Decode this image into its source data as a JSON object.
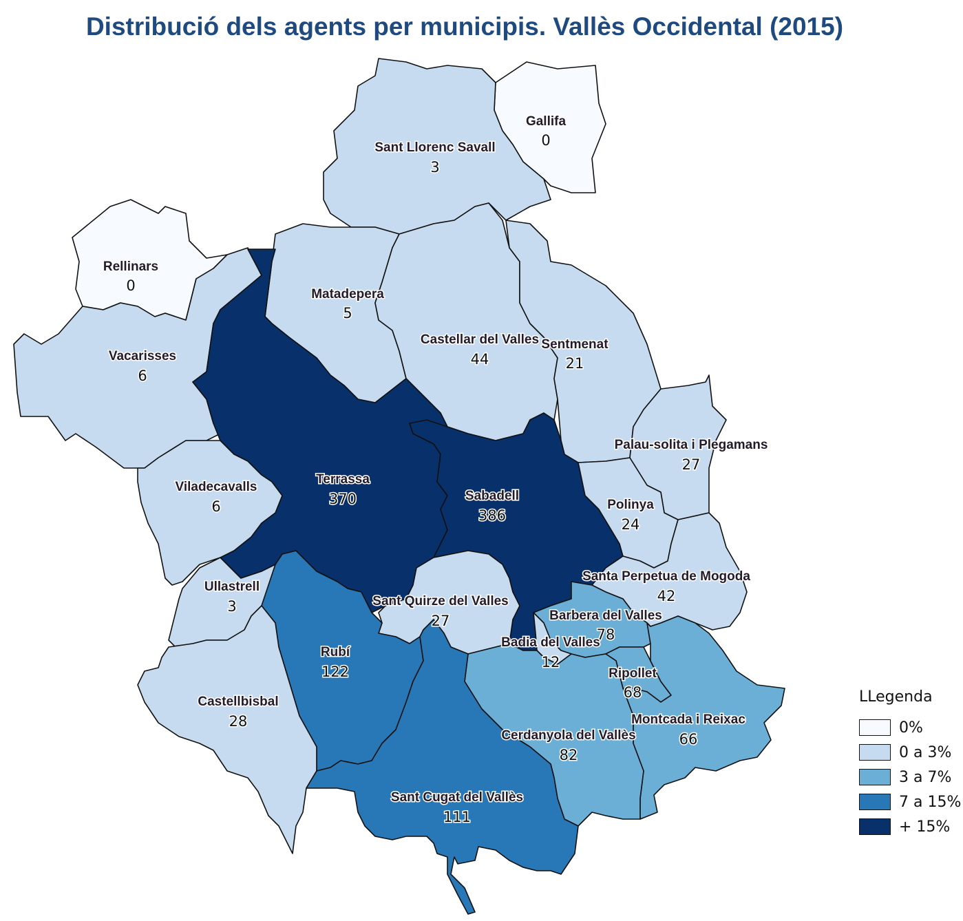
{
  "title": "Distribució dels agents per municipis. Vallès Occidental (2015)",
  "legend": {
    "title": "LLegenda",
    "items": [
      {
        "label": "0%",
        "color": "#f7fbff"
      },
      {
        "label": "0 a 3%",
        "color": "#c6dbef"
      },
      {
        "label": "3 a 7%",
        "color": "#6baed6"
      },
      {
        "label": "7 a 15%",
        "color": "#2878b8"
      },
      {
        "label": "+ 15%",
        "color": "#08306b"
      }
    ]
  },
  "municipalities": [
    {
      "name": "Gallifa",
      "value": "0",
      "class": 0
    },
    {
      "name": "Sant Llorenc Savall",
      "value": "3",
      "class": 1
    },
    {
      "name": "Rellinars",
      "value": "0",
      "class": 0
    },
    {
      "name": "Matadepera",
      "value": "5",
      "class": 1
    },
    {
      "name": "Vacarisses",
      "value": "6",
      "class": 1
    },
    {
      "name": "Castellar del Valles",
      "value": "44",
      "class": 1
    },
    {
      "name": "Sentmenat",
      "value": "21",
      "class": 1
    },
    {
      "name": "Palau-solita i Plegamans",
      "value": "27",
      "class": 1
    },
    {
      "name": "Terrassa",
      "value": "370",
      "class": 4
    },
    {
      "name": "Sabadell",
      "value": "386",
      "class": 4
    },
    {
      "name": "Viladecavalls",
      "value": "6",
      "class": 1
    },
    {
      "name": "Polinya",
      "value": "24",
      "class": 1
    },
    {
      "name": "Ullastrell",
      "value": "3",
      "class": 1
    },
    {
      "name": "Santa Perpetua de Mogoda",
      "value": "42",
      "class": 1
    },
    {
      "name": "Sant Quirze del Valles",
      "value": "27",
      "class": 1
    },
    {
      "name": "Barbera del Valles",
      "value": "78",
      "class": 2
    },
    {
      "name": "Badia del Valles",
      "value": "12",
      "class": 1
    },
    {
      "name": "Rubí",
      "value": "122",
      "class": 3
    },
    {
      "name": "Ripollet",
      "value": "68",
      "class": 2
    },
    {
      "name": "Castellbisbal",
      "value": "28",
      "class": 1
    },
    {
      "name": "Montcada i Reixac",
      "value": "66",
      "class": 2
    },
    {
      "name": "Cerdanyola del Vallès",
      "value": "82",
      "class": 2
    },
    {
      "name": "Sant Cugat del Vallès",
      "value": "111",
      "class": 3
    }
  ]
}
